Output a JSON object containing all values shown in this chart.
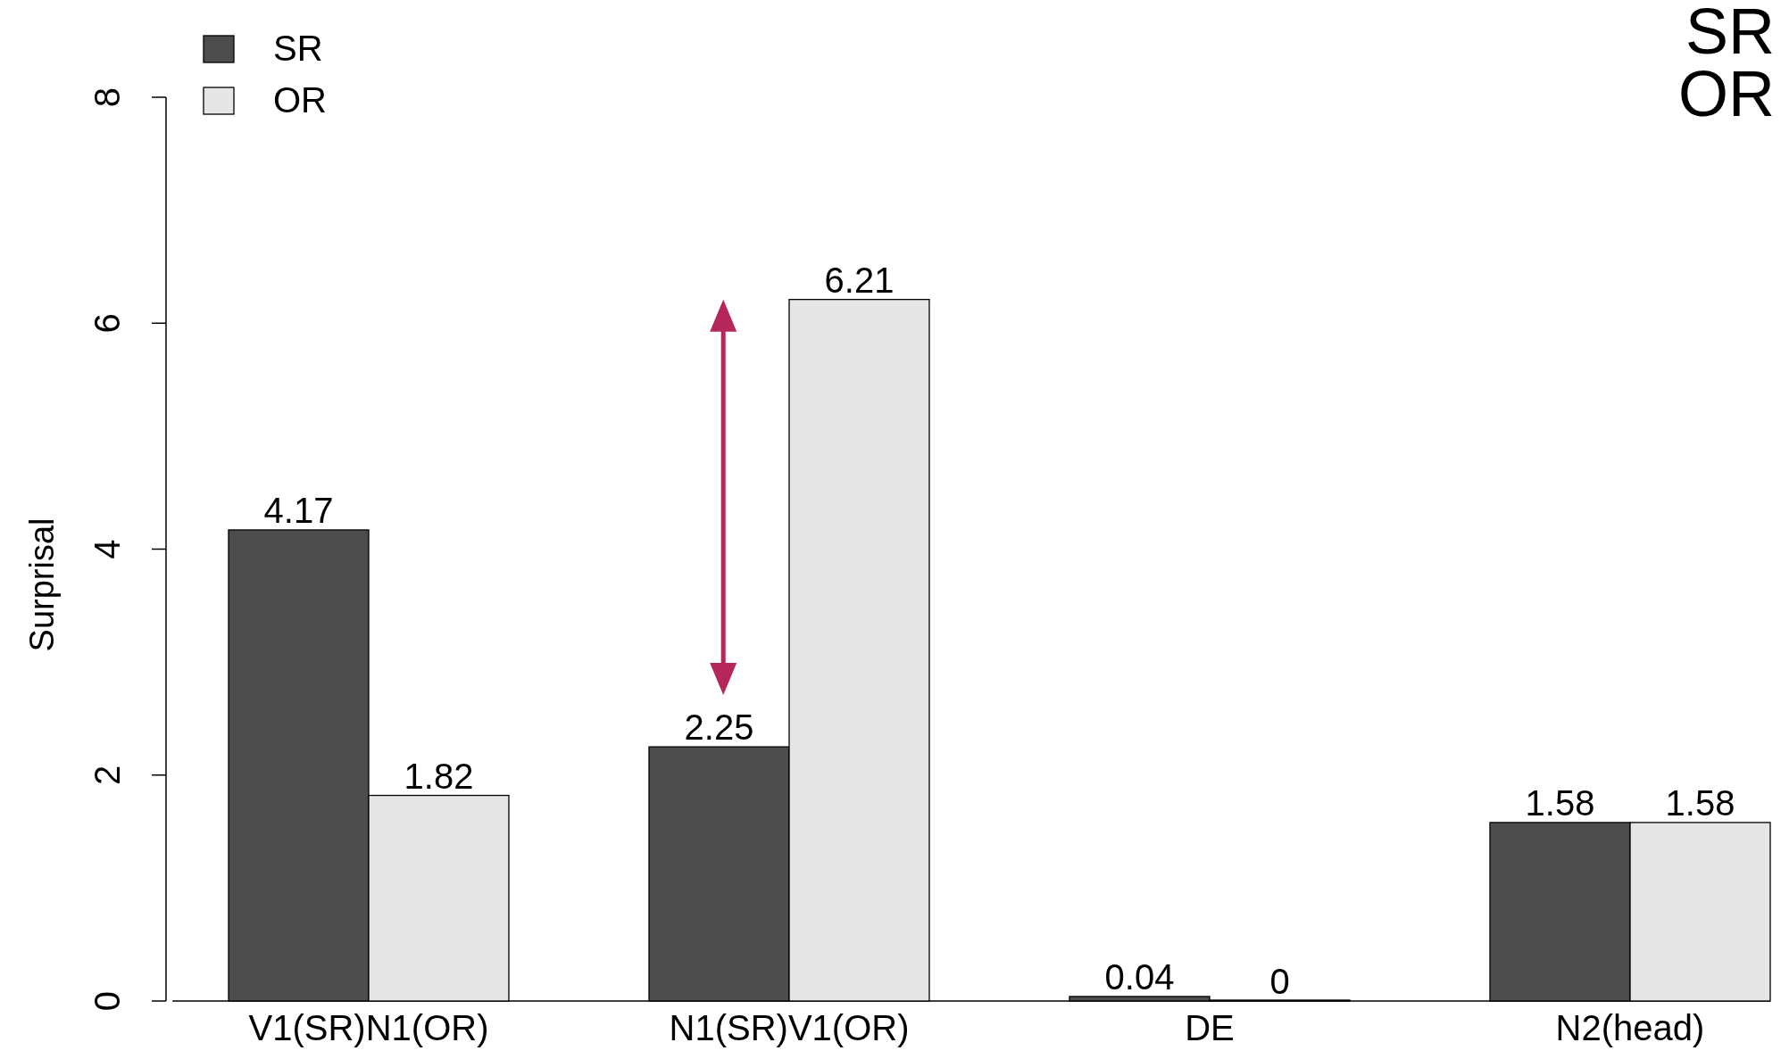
{
  "chart_data": {
    "type": "bar",
    "ylabel": "Surprisal",
    "categories": [
      "V1(SR)N1(OR)",
      "N1(SR)V1(OR)",
      "DE",
      "N2(head)"
    ],
    "series": [
      {
        "name": "SR",
        "color": "#4d4d4d",
        "values": [
          4.17,
          2.25,
          0.04,
          1.58
        ]
      },
      {
        "name": "OR",
        "color": "#e6e6e6",
        "values": [
          1.82,
          6.21,
          0,
          1.58
        ]
      }
    ],
    "ylim": [
      0,
      8
    ],
    "yticks": [
      0,
      2,
      4,
      6,
      8
    ],
    "data_labels": true,
    "legend": "top left",
    "grid": false,
    "annotations": [
      "SR",
      "OR"
    ]
  }
}
